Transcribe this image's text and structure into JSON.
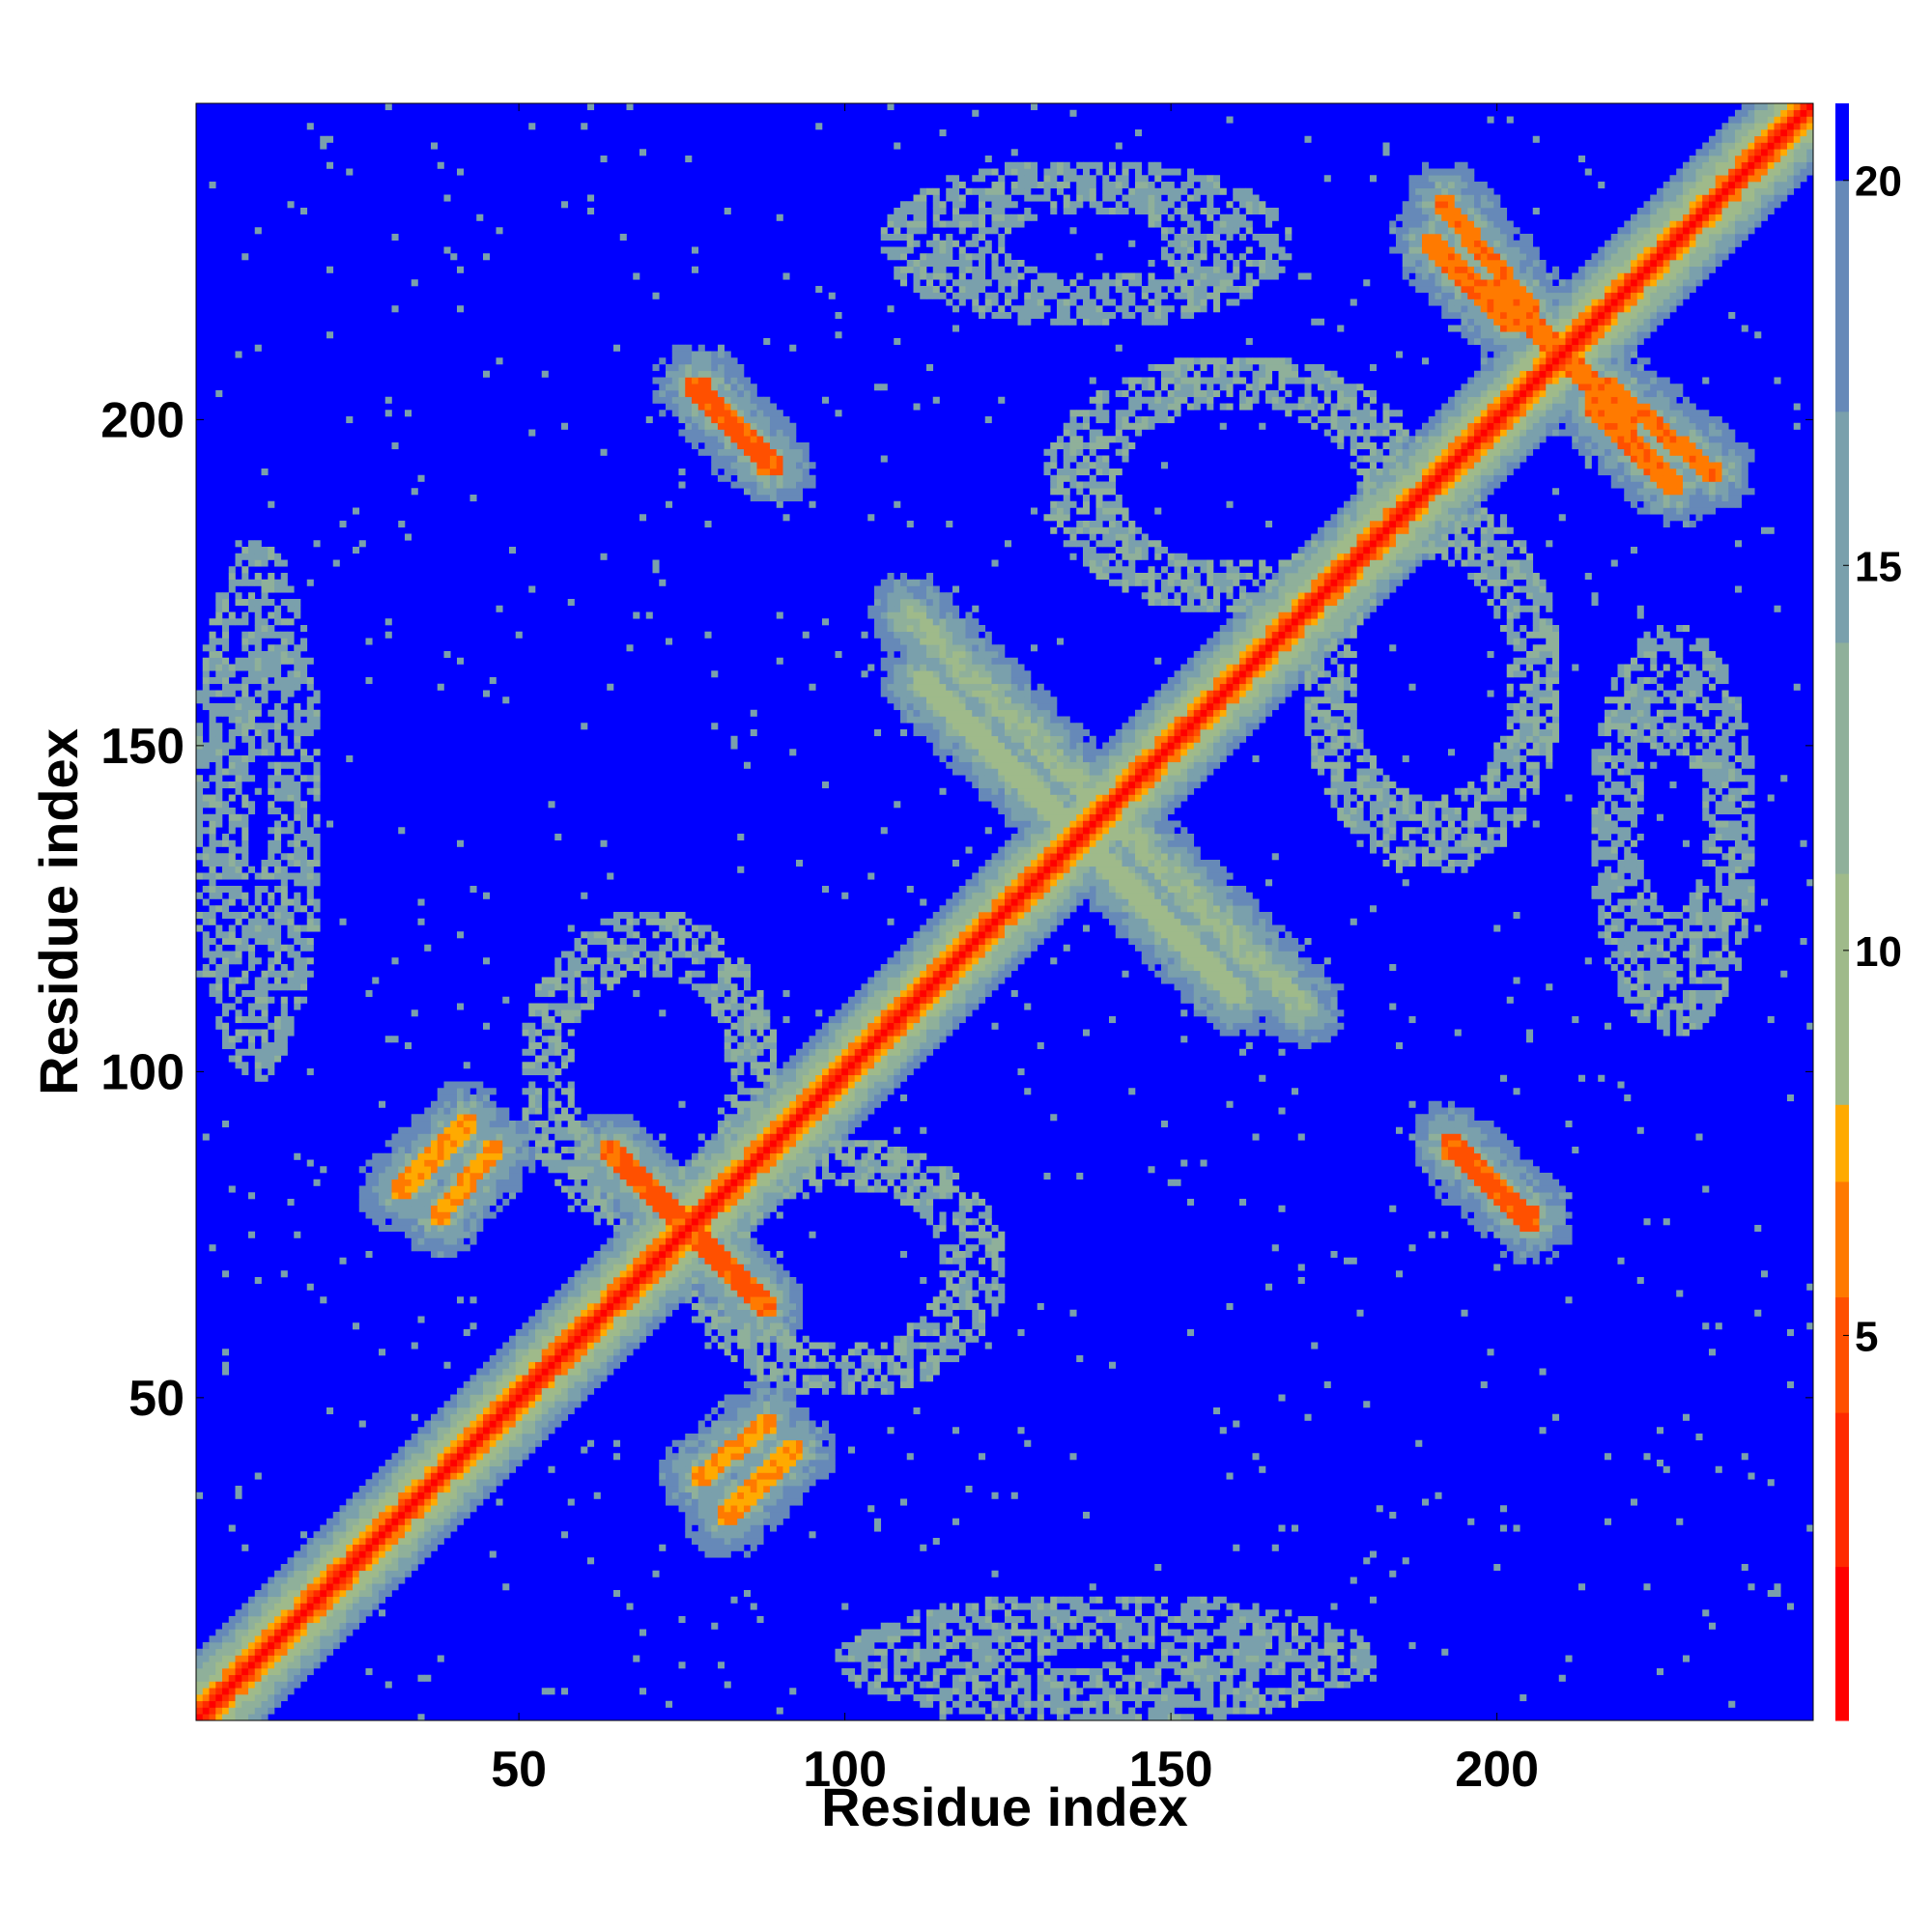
{
  "chart_data": {
    "type": "heatmap",
    "title": "",
    "xlabel": "Residue index",
    "ylabel": "Residue index",
    "x_range": [
      1,
      248
    ],
    "y_range": [
      1,
      248
    ],
    "x_ticks": [
      50,
      100,
      150,
      200
    ],
    "y_ticks": [
      50,
      100,
      150,
      200
    ],
    "x_tick_labels": [
      "50",
      "100",
      "150",
      "200"
    ],
    "y_tick_labels": [
      "50",
      "100",
      "150",
      "200"
    ],
    "colorbar": {
      "min": 0,
      "max": 21,
      "ticks": [
        5,
        10,
        15,
        20
      ],
      "tick_labels": [
        "5",
        "10",
        "15",
        "20"
      ],
      "colors": [
        "#ff0000",
        "#ff2a00",
        "#ff5000",
        "#ff7a00",
        "#ffaa00",
        "#9fba8a",
        "#8fb09a",
        "#7aa0ac",
        "#6689b8",
        "#0000ff"
      ],
      "bounds": [
        0,
        2,
        4,
        5.5,
        7,
        8,
        11,
        14,
        17,
        20,
        21
      ]
    },
    "grid": false,
    "legend": "colorbar-right",
    "value_description": "pairwise residue distance, contact map symmetric about the diagonal",
    "features": [
      {
        "kind": "diagonal",
        "start": 1,
        "end": 248,
        "core": 1.5,
        "halo": 10
      },
      {
        "kind": "antiparallel",
        "center": [
          76,
          76
        ],
        "length": 12,
        "distance": 4
      },
      {
        "kind": "antiparallel",
        "center": [
          136,
          136
        ],
        "length": 24,
        "distance": 9
      },
      {
        "kind": "antiparallel",
        "center": [
          210,
          210
        ],
        "length": 10,
        "distance": 5
      },
      {
        "kind": "parallel",
        "a": [
          32,
          82
        ],
        "b": [
          42,
          92
        ],
        "distance": 6
      },
      {
        "kind": "parallel",
        "a": [
          78,
          38
        ],
        "b": [
          88,
          46
        ],
        "distance": 6
      },
      {
        "kind": "antiparallel_band",
        "a": [
          78,
          205
        ],
        "b": [
          88,
          193
        ],
        "distance": 4
      },
      {
        "kind": "antiparallel_band",
        "a": [
          193,
          89
        ],
        "b": [
          205,
          77
        ],
        "distance": 4
      },
      {
        "kind": "antiparallel_band",
        "a": [
          192,
          233
        ],
        "b": [
          205,
          217
        ],
        "distance": 5
      },
      {
        "kind": "antiparallel_band",
        "a": [
          215,
          202
        ],
        "b": [
          227,
          190
        ],
        "distance": 5
      },
      {
        "kind": "antiparallel_band",
        "a": [
          110,
          170
        ],
        "b": [
          170,
          110
        ],
        "distance": 10
      },
      {
        "kind": "antiparallel_band",
        "a": [
          112,
          160
        ],
        "b": [
          160,
          112
        ],
        "distance": 9
      },
      {
        "kind": "ring",
        "center": [
          137,
          227
        ],
        "rx": 22,
        "ry": 9,
        "distance": 13
      },
      {
        "kind": "ring",
        "center": [
          227,
          137
        ],
        "rx": 9,
        "ry": 22,
        "distance": 13
      },
      {
        "kind": "ring",
        "center": [
          160,
          190
        ],
        "rx": 24,
        "ry": 16,
        "distance": 12
      },
      {
        "kind": "ring",
        "center": [
          190,
          160
        ],
        "rx": 16,
        "ry": 24,
        "distance": 12
      },
      {
        "kind": "ring",
        "center": [
          10,
          140
        ],
        "rx": 6,
        "ry": 25,
        "distance": 13
      },
      {
        "kind": "ring",
        "center": [
          140,
          10
        ],
        "rx": 25,
        "ry": 6,
        "distance": 13
      },
      {
        "kind": "ring",
        "center": [
          70,
          100
        ],
        "rx": 16,
        "ry": 20,
        "distance": 12
      },
      {
        "kind": "ring",
        "center": [
          100,
          70
        ],
        "rx": 20,
        "ry": 16,
        "distance": 12
      }
    ]
  }
}
